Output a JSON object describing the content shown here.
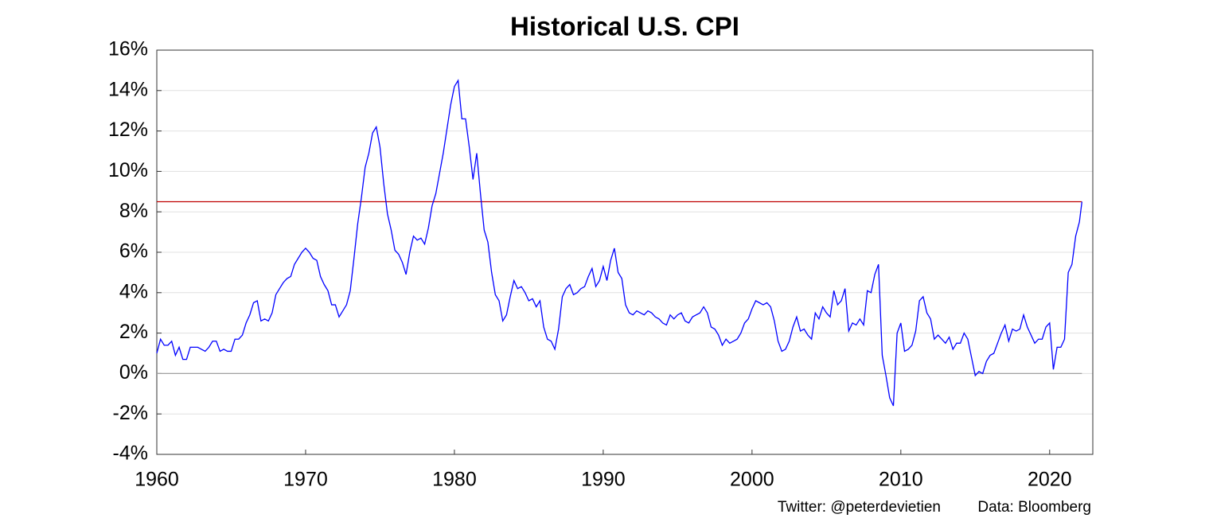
{
  "chart_data": {
    "type": "line",
    "title": "Historical U.S. CPI",
    "x": [
      1960,
      1960.25,
      1960.5,
      1960.75,
      1961,
      1961.25,
      1961.5,
      1961.75,
      1962,
      1962.25,
      1962.5,
      1962.75,
      1963,
      1963.25,
      1963.5,
      1963.75,
      1964,
      1964.25,
      1964.5,
      1964.75,
      1965,
      1965.25,
      1965.5,
      1965.75,
      1966,
      1966.25,
      1966.5,
      1966.75,
      1967,
      1967.25,
      1967.5,
      1967.75,
      1968,
      1968.25,
      1968.5,
      1968.75,
      1969,
      1969.25,
      1969.5,
      1969.75,
      1970,
      1970.25,
      1970.5,
      1970.75,
      1971,
      1971.25,
      1971.5,
      1971.75,
      1972,
      1972.25,
      1972.5,
      1972.75,
      1973,
      1973.25,
      1973.5,
      1973.75,
      1974,
      1974.25,
      1974.5,
      1974.75,
      1975,
      1975.25,
      1975.5,
      1975.75,
      1976,
      1976.25,
      1976.5,
      1976.75,
      1977,
      1977.25,
      1977.5,
      1977.75,
      1978,
      1978.25,
      1978.5,
      1978.75,
      1979,
      1979.25,
      1979.5,
      1979.75,
      1980,
      1980.25,
      1980.5,
      1980.75,
      1981,
      1981.25,
      1981.5,
      1981.75,
      1982,
      1982.25,
      1982.5,
      1982.75,
      1983,
      1983.25,
      1983.5,
      1983.75,
      1984,
      1984.25,
      1984.5,
      1984.75,
      1985,
      1985.25,
      1985.5,
      1985.75,
      1986,
      1986.25,
      1986.5,
      1986.75,
      1987,
      1987.25,
      1987.5,
      1987.75,
      1988,
      1988.25,
      1988.5,
      1988.75,
      1989,
      1989.25,
      1989.5,
      1989.75,
      1990,
      1990.25,
      1990.5,
      1990.75,
      1991,
      1991.25,
      1991.5,
      1991.75,
      1992,
      1992.25,
      1992.5,
      1992.75,
      1993,
      1993.25,
      1993.5,
      1993.75,
      1994,
      1994.25,
      1994.5,
      1994.75,
      1995,
      1995.25,
      1995.5,
      1995.75,
      1996,
      1996.25,
      1996.5,
      1996.75,
      1997,
      1997.25,
      1997.5,
      1997.75,
      1998,
      1998.25,
      1998.5,
      1998.75,
      1999,
      1999.25,
      1999.5,
      1999.75,
      2000,
      2000.25,
      2000.5,
      2000.75,
      2001,
      2001.25,
      2001.5,
      2001.75,
      2002,
      2002.25,
      2002.5,
      2002.75,
      2003,
      2003.25,
      2003.5,
      2003.75,
      2004,
      2004.25,
      2004.5,
      2004.75,
      2005,
      2005.25,
      2005.5,
      2005.75,
      2006,
      2006.25,
      2006.5,
      2006.75,
      2007,
      2007.25,
      2007.5,
      2007.75,
      2008,
      2008.25,
      2008.5,
      2008.75,
      2009,
      2009.25,
      2009.5,
      2009.75,
      2010,
      2010.25,
      2010.5,
      2010.75,
      2011,
      2011.25,
      2011.5,
      2011.75,
      2012,
      2012.25,
      2012.5,
      2012.75,
      2013,
      2013.25,
      2013.5,
      2013.75,
      2014,
      2014.25,
      2014.5,
      2014.75,
      2015,
      2015.25,
      2015.5,
      2015.75,
      2016,
      2016.25,
      2016.5,
      2016.75,
      2017,
      2017.25,
      2017.5,
      2017.75,
      2018,
      2018.25,
      2018.5,
      2018.75,
      2019,
      2019.25,
      2019.5,
      2019.75,
      2020,
      2020.25,
      2020.5,
      2020.75,
      2021,
      2021.25,
      2021.5,
      2021.75,
      2022,
      2022.17
    ],
    "values": [
      1.0,
      1.7,
      1.4,
      1.4,
      1.6,
      0.9,
      1.3,
      0.7,
      0.7,
      1.3,
      1.3,
      1.3,
      1.2,
      1.1,
      1.3,
      1.6,
      1.6,
      1.1,
      1.2,
      1.1,
      1.1,
      1.7,
      1.7,
      1.9,
      2.5,
      2.9,
      3.5,
      3.6,
      2.6,
      2.7,
      2.6,
      3.0,
      3.9,
      4.2,
      4.5,
      4.7,
      4.8,
      5.4,
      5.7,
      6.0,
      6.2,
      6.0,
      5.7,
      5.6,
      4.8,
      4.4,
      4.1,
      3.4,
      3.4,
      2.8,
      3.1,
      3.4,
      4.1,
      5.7,
      7.4,
      8.7,
      10.2,
      10.9,
      11.9,
      12.2,
      11.2,
      9.4,
      7.9,
      7.1,
      6.1,
      5.9,
      5.5,
      4.9,
      6.0,
      6.8,
      6.6,
      6.7,
      6.4,
      7.2,
      8.3,
      8.9,
      9.9,
      10.9,
      12.1,
      13.3,
      14.2,
      14.5,
      12.6,
      12.6,
      11.2,
      9.6,
      10.9,
      8.9,
      7.1,
      6.5,
      5.0,
      3.9,
      3.6,
      2.6,
      2.9,
      3.8,
      4.6,
      4.2,
      4.3,
      4.0,
      3.6,
      3.7,
      3.3,
      3.6,
      2.3,
      1.7,
      1.6,
      1.2,
      2.2,
      3.8,
      4.2,
      4.4,
      3.9,
      4.0,
      4.2,
      4.3,
      4.8,
      5.2,
      4.3,
      4.6,
      5.3,
      4.6,
      5.6,
      6.2,
      5.0,
      4.7,
      3.4,
      3.0,
      2.9,
      3.1,
      3.0,
      2.9,
      3.1,
      3.0,
      2.8,
      2.7,
      2.5,
      2.4,
      2.9,
      2.7,
      2.9,
      3.0,
      2.6,
      2.5,
      2.8,
      2.9,
      3.0,
      3.3,
      3.0,
      2.3,
      2.2,
      1.9,
      1.4,
      1.7,
      1.5,
      1.6,
      1.7,
      2.0,
      2.5,
      2.7,
      3.2,
      3.6,
      3.5,
      3.4,
      3.5,
      3.3,
      2.6,
      1.6,
      1.1,
      1.2,
      1.6,
      2.3,
      2.8,
      2.1,
      2.2,
      1.9,
      1.7,
      3.0,
      2.7,
      3.3,
      3.0,
      2.8,
      4.1,
      3.4,
      3.6,
      4.2,
      2.1,
      2.5,
      2.4,
      2.7,
      2.4,
      4.1,
      4.0,
      4.9,
      5.4,
      0.9,
      -0.1,
      -1.2,
      -1.6,
      2.0,
      2.5,
      1.1,
      1.2,
      1.4,
      2.1,
      3.6,
      3.8,
      3.0,
      2.7,
      1.7,
      1.9,
      1.7,
      1.5,
      1.8,
      1.2,
      1.5,
      1.5,
      2.0,
      1.7,
      0.8,
      -0.1,
      0.1,
      0.0,
      0.6,
      0.9,
      1.0,
      1.5,
      2.0,
      2.4,
      1.6,
      2.2,
      2.1,
      2.2,
      2.9,
      2.3,
      1.9,
      1.5,
      1.7,
      1.7,
      2.3,
      2.5,
      0.2,
      1.3,
      1.3,
      1.7,
      5.0,
      5.4,
      6.8,
      7.5,
      8.5
    ],
    "color": "#0000ff",
    "reference_lines": [
      {
        "value": 8.5,
        "color": "#c00000"
      },
      {
        "value": 0,
        "color": "#a0a0a0"
      }
    ],
    "xlim": [
      1960,
      2022.9
    ],
    "ylim": [
      -4,
      16
    ],
    "xticks": [
      1960,
      1970,
      1980,
      1990,
      2000,
      2010,
      2020
    ],
    "yticks": [
      {
        "value": -4,
        "label": "-4%"
      },
      {
        "value": -2,
        "label": "-2%"
      },
      {
        "value": 0,
        "label": "0%"
      },
      {
        "value": 2,
        "label": "2%"
      },
      {
        "value": 4,
        "label": "4%"
      },
      {
        "value": 6,
        "label": "6%"
      },
      {
        "value": 8,
        "label": "8%"
      },
      {
        "value": 10,
        "label": "10%"
      },
      {
        "value": 12,
        "label": "12%"
      },
      {
        "value": 14,
        "label": "14%"
      },
      {
        "value": 16,
        "label": "16%"
      }
    ],
    "grid": true,
    "annotations": [
      "Twitter: @peterdevietien",
      "Data: Bloomberg"
    ]
  }
}
